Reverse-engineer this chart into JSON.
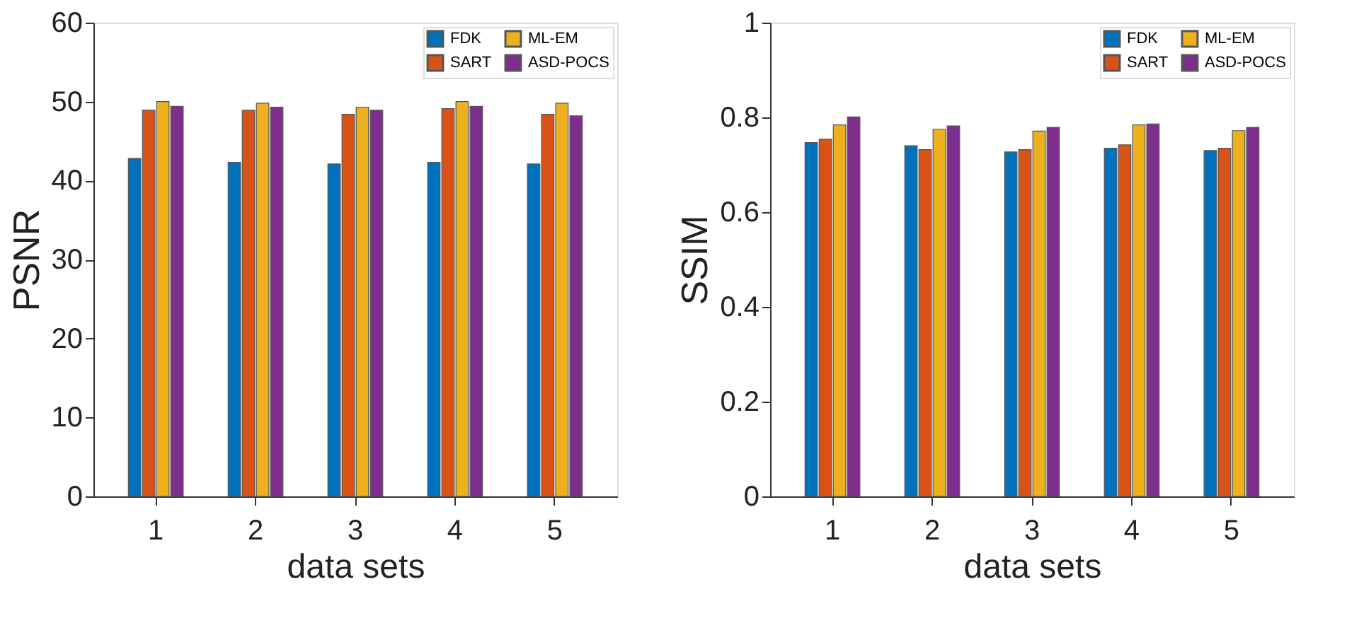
{
  "chart_data": [
    {
      "type": "bar",
      "categories": [
        "1",
        "2",
        "3",
        "4",
        "5"
      ],
      "xlabel": "data sets",
      "ylabel": "PSNR",
      "ylim": [
        0,
        60
      ],
      "yticks": [
        0,
        10,
        20,
        30,
        40,
        50,
        60
      ],
      "grid": false,
      "legend": "top right",
      "series": [
        {
          "name": "FDK",
          "color": "#0072bd",
          "values": [
            42.8,
            42.3,
            42.1,
            42.3,
            42.1
          ]
        },
        {
          "name": "SART",
          "color": "#d95319",
          "values": [
            48.9,
            48.9,
            48.4,
            49.1,
            48.4
          ]
        },
        {
          "name": "ML-EM",
          "color": "#edb120",
          "values": [
            50.0,
            49.8,
            49.3,
            50.0,
            49.8
          ]
        },
        {
          "name": "ASD-POCS",
          "color": "#7e2f8e",
          "values": [
            49.4,
            49.3,
            48.9,
            49.4,
            48.2
          ]
        }
      ]
    },
    {
      "type": "bar",
      "categories": [
        "1",
        "2",
        "3",
        "4",
        "5"
      ],
      "xlabel": "data sets",
      "ylabel": "SSIM",
      "ylim": [
        0,
        1
      ],
      "yticks": [
        0,
        0.2,
        0.4,
        0.6,
        0.8,
        1
      ],
      "grid": false,
      "legend": "top right",
      "series": [
        {
          "name": "FDK",
          "color": "#0072bd",
          "values": [
            0.747,
            0.74,
            0.727,
            0.735,
            0.73
          ]
        },
        {
          "name": "SART",
          "color": "#d95319",
          "values": [
            0.754,
            0.732,
            0.732,
            0.742,
            0.735
          ]
        },
        {
          "name": "ML-EM",
          "color": "#edb120",
          "values": [
            0.784,
            0.775,
            0.771,
            0.784,
            0.772
          ]
        },
        {
          "name": "ASD-POCS",
          "color": "#7e2f8e",
          "values": [
            0.801,
            0.782,
            0.779,
            0.786,
            0.779
          ]
        }
      ]
    }
  ]
}
